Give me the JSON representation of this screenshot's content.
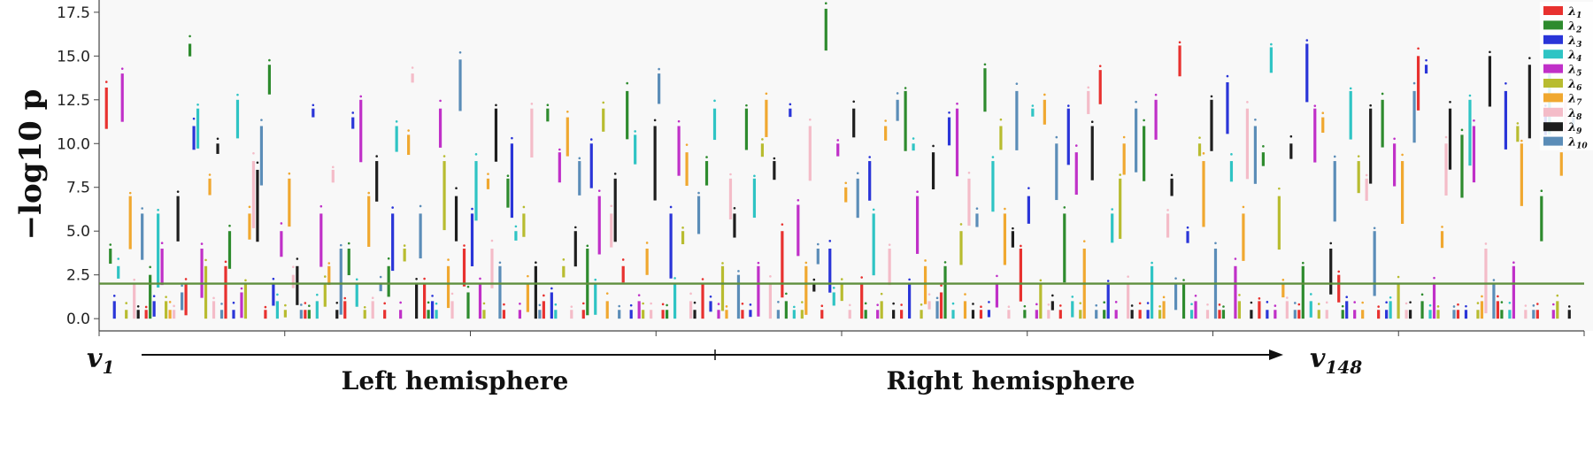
{
  "chart_data": {
    "type": "scatter",
    "ylabel": "−log10 p",
    "ylim": [
      -0.7,
      18.2
    ],
    "yticks": [
      "0.0",
      "2.5",
      "5.0",
      "7.5",
      "10.0",
      "12.5",
      "15.0",
      "17.5"
    ],
    "ytick_values": [
      0,
      2.5,
      5,
      7.5,
      10,
      12.5,
      15,
      17.5
    ],
    "threshold": 2,
    "threshold_color": "#5f8f3e",
    "n_vertices": 148,
    "x_start_label": "v",
    "x_start_sub": "1",
    "x_end_label": "v",
    "x_end_sub": "148",
    "regions": [
      "Left hemisphere",
      "Right hemisphere"
    ],
    "legend_symbol": "λ",
    "series": [
      {
        "name": "1",
        "color": "#e8312f"
      },
      {
        "name": "2",
        "color": "#2e8b2e"
      },
      {
        "name": "3",
        "color": "#2a35d8"
      },
      {
        "name": "4",
        "color": "#2fc4c4"
      },
      {
        "name": "5",
        "color": "#c030c8"
      },
      {
        "name": "6",
        "color": "#b8bc30"
      },
      {
        "name": "7",
        "color": "#f0a830"
      },
      {
        "name": "8",
        "color": "#f4bcc8"
      },
      {
        "name": "9",
        "color": "#1e1e1e"
      },
      {
        "name": "10",
        "color": "#5b8db8"
      }
    ],
    "legend_position": "top-right",
    "note": "Each vertex shows 10 vertical point-strips (one per eigenvalue); per-vertex maxima are approximate readings.",
    "values": [
      [
        13.2,
        4.0,
        1.0,
        3.0,
        14.0,
        0.5,
        7.0,
        2.0,
        0.5,
        6.0
      ],
      [
        0.5,
        2.5,
        1.0,
        6.0,
        4.0,
        1.0,
        0.5,
        0.5,
        7.0,
        1.5
      ],
      [
        2.0,
        15.7,
        11.0,
        12.0,
        4.0,
        3.0,
        8.0,
        1.0,
        10.0,
        0.5
      ],
      [
        3.0,
        5.0,
        0.5,
        12.5,
        1.5,
        2.0,
        6.0,
        9.0,
        8.5,
        11.0
      ],
      [
        0.5,
        14.5,
        2.0,
        1.0,
        5.0,
        0.5,
        8.0,
        2.5,
        3.0,
        0.5
      ],
      [
        0.5,
        0.5,
        12.0,
        1.0,
        6.0,
        2.0,
        3.0,
        8.5,
        0.5,
        4.0
      ],
      [
        1.0,
        4.0,
        11.5,
        2.0,
        12.5,
        0.5,
        7.0,
        1.0,
        9.0,
        2.0
      ],
      [
        0.5,
        3.0,
        6.0,
        11.0,
        0.5,
        4.0,
        10.5,
        14.0,
        2.0,
        6.0
      ],
      [
        2.0,
        0.5,
        1.0,
        0.5,
        12.0,
        9.0,
        3.0,
        1.0,
        7.0,
        14.8
      ],
      [
        4.0,
        1.5,
        6.0,
        9.0,
        2.0,
        0.5,
        8.0,
        4.0,
        12.0,
        3.0
      ],
      [
        0.5,
        8.0,
        10.0,
        5.0,
        0.5,
        6.0,
        2.0,
        12.0,
        3.0,
        0.5
      ],
      [
        1.0,
        12.0,
        1.5,
        0.5,
        9.5,
        3.0,
        11.5,
        0.5,
        5.0,
        9.0
      ],
      [
        0.5,
        4.0,
        10.0,
        2.0,
        7.0,
        12.0,
        1.0,
        6.0,
        8.0,
        0.5
      ],
      [
        3.0,
        13.0,
        0.5,
        10.5,
        1.0,
        0.5,
        4.0,
        0.5,
        11.0,
        14.0
      ],
      [
        0.5,
        0.5,
        6.0,
        2.0,
        11.0,
        5.0,
        9.5,
        1.0,
        0.5,
        7.0
      ],
      [
        2.0,
        9.0,
        1.0,
        12.0,
        0.5,
        3.0,
        0.5,
        8.0,
        6.0,
        2.5
      ],
      [
        0.5,
        12.0,
        0.5,
        8.0,
        3.0,
        10.0,
        12.5,
        2.0,
        9.0,
        0.5
      ],
      [
        5.0,
        1.0,
        12.0,
        0.5,
        6.5,
        0.5,
        3.0,
        11.0,
        2.0,
        4.0
      ],
      [
        0.5,
        17.7,
        4.0,
        1.5,
        10.0,
        2.0,
        7.5,
        0.5,
        12.0,
        8.0
      ],
      [
        2.0,
        0.5,
        9.0,
        6.0,
        0.5,
        1.0,
        11.0,
        4.0,
        0.5,
        12.5
      ],
      [
        0.5,
        13.0,
        2.0,
        10.0,
        7.0,
        0.5,
        3.0,
        1.0,
        9.5,
        1.0
      ],
      [
        1.5,
        3.0,
        11.5,
        0.5,
        12.0,
        5.0,
        1.0,
        8.0,
        0.5,
        6.0
      ],
      [
        0.5,
        14.3,
        0.5,
        9.0,
        2.0,
        11.0,
        6.0,
        0.5,
        5.0,
        13.0
      ],
      [
        4.0,
        0.5,
        7.0,
        12.0,
        0.5,
        2.0,
        12.5,
        0.5,
        1.0,
        10.0
      ],
      [
        0.5,
        6.0,
        12.0,
        1.0,
        9.5,
        0.5,
        4.0,
        13.0,
        11.0,
        0.5
      ],
      [
        14.2,
        0.5,
        2.0,
        6.0,
        0.5,
        8.0,
        10.0,
        2.0,
        0.5,
        12.0
      ],
      [
        0.5,
        11.0,
        0.5,
        3.0,
        12.5,
        0.5,
        1.0,
        6.0,
        8.0,
        2.0
      ],
      [
        15.6,
        2.0,
        5.0,
        0.5,
        1.0,
        10.0,
        9.0,
        0.5,
        12.5,
        4.0
      ],
      [
        0.5,
        0.5,
        13.5,
        9.0,
        3.0,
        1.0,
        6.0,
        12.0,
        0.5,
        11.0
      ],
      [
        1.0,
        9.5,
        0.5,
        15.5,
        0.5,
        7.0,
        2.0,
        1.0,
        10.0,
        0.5
      ],
      [
        0.5,
        3.0,
        15.7,
        1.0,
        12.0,
        0.5,
        11.5,
        0.5,
        4.0,
        9.0
      ],
      [
        2.5,
        0.5,
        1.0,
        13.0,
        0.5,
        9.0,
        0.5,
        8.0,
        12.0,
        5.0
      ],
      [
        0.5,
        12.5,
        0.5,
        1.0,
        10.0,
        2.0,
        9.0,
        0.5,
        0.5,
        13.0
      ],
      [
        15.0,
        1.0,
        14.5,
        0.5,
        2.0,
        0.5,
        5.0,
        10.0,
        12.0,
        0.5
      ],
      [
        0.5,
        10.5,
        0.5,
        12.5,
        11.0,
        0.5,
        1.0,
        4.0,
        15.0,
        2.0
      ],
      [
        1.0,
        0.5,
        13.0,
        0.5,
        3.0,
        11.0,
        10.0,
        0.5,
        14.5,
        0.5
      ],
      [
        0.5,
        7.0,
        12.0,
        14.0,
        0.5,
        1.0,
        9.5,
        12.5,
        0.5,
        11.5
      ]
    ]
  }
}
